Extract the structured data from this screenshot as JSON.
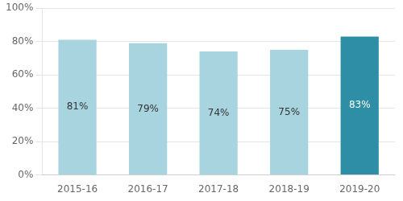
{
  "chart_data": {
    "type": "bar",
    "categories": [
      "2015-16",
      "2016-17",
      "2017-18",
      "2018-19",
      "2019-20"
    ],
    "values": [
      81,
      79,
      74,
      75,
      83
    ],
    "value_labels": [
      "81%",
      "79%",
      "74%",
      "75%",
      "83%"
    ],
    "data_labels": true,
    "colors": [
      "#a8d4e0",
      "#a8d4e0",
      "#a8d4e0",
      "#a8d4e0",
      "#2e8ea6"
    ],
    "ylim": [
      0,
      100
    ],
    "yticks": [
      {
        "value": 0,
        "label": "0%"
      },
      {
        "value": 20,
        "label": "20%"
      },
      {
        "value": 40,
        "label": "40%"
      },
      {
        "value": 60,
        "label": "60%"
      },
      {
        "value": 80,
        "label": "80%"
      },
      {
        "value": 100,
        "label": "100%"
      }
    ],
    "grid": true
  }
}
